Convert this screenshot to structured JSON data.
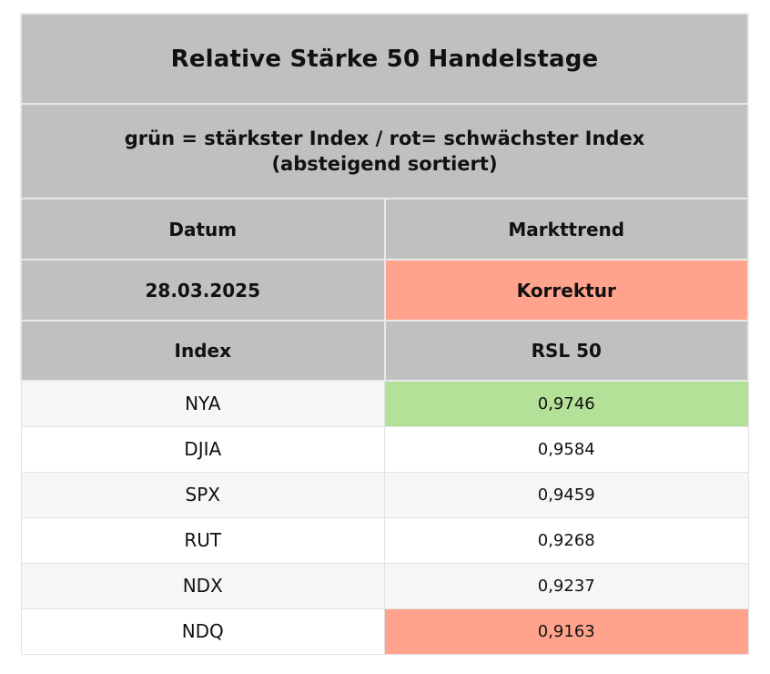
{
  "chart_data": {
    "type": "table",
    "title": "Relative Stärke 50 Handelstage",
    "subtitle": "grün = stärkster Index / rot= schwächster Index (absteigend sortiert)",
    "date": "28.03.2025",
    "markttrend": "Korrektur",
    "columns": [
      "Index",
      "RSL 50"
    ],
    "rows": [
      [
        "NYA",
        0.9746
      ],
      [
        "DJIA",
        0.9584
      ],
      [
        "SPX",
        0.9459
      ],
      [
        "RUT",
        0.9268
      ],
      [
        "NDX",
        0.9237
      ],
      [
        "NDQ",
        0.9163
      ]
    ],
    "strongest_index": "NYA",
    "weakest_index": "NDQ",
    "sort_order": "descending"
  },
  "table": {
    "title": "Relative Stärke 50 Handelstage",
    "subtitle_line1": "grün = stärkster Index / rot= schwächster Index",
    "subtitle_line2": "(absteigend sortiert)",
    "meta": {
      "date_label": "Datum",
      "trend_label": "Markttrend",
      "date_value": "28.03.2025",
      "trend_value": "Korrektur",
      "trend_highlight": "red"
    },
    "columns": {
      "index_label": "Index",
      "rsl_label": "RSL 50"
    },
    "rows": [
      {
        "index": "NYA",
        "rsl": "0,9746",
        "highlight": "green"
      },
      {
        "index": "DJIA",
        "rsl": "0,9584",
        "highlight": "none"
      },
      {
        "index": "SPX",
        "rsl": "0,9459",
        "highlight": "none"
      },
      {
        "index": "RUT",
        "rsl": "0,9268",
        "highlight": "none"
      },
      {
        "index": "NDX",
        "rsl": "0,9237",
        "highlight": "none"
      },
      {
        "index": "NDQ",
        "rsl": "0,9163",
        "highlight": "red"
      }
    ],
    "colors": {
      "header_bg": "#c0c0c0",
      "green": "#b3e198",
      "red": "#ffa38c",
      "stripe": "#f6f6f6"
    }
  }
}
